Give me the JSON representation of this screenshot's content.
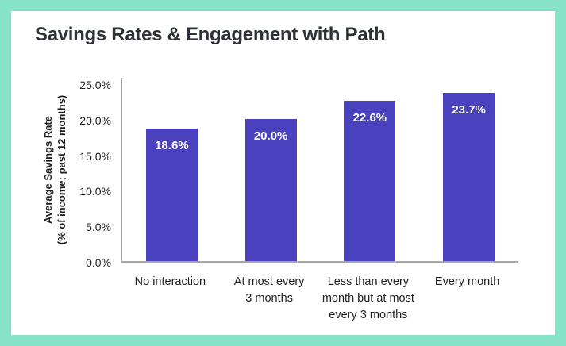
{
  "frame": {
    "border_color": "#86e3c6",
    "card_background": "#ffffff"
  },
  "title": "Savings Rates & Engagement with Path",
  "chart_data": {
    "type": "bar",
    "title": "Savings Rates & Engagement with Path",
    "categories": [
      "No interaction",
      "At most every 3 months",
      "Less than every month but at most every 3 months",
      "Every month"
    ],
    "category_lines": [
      [
        "No interaction"
      ],
      [
        "At most every",
        "3 months"
      ],
      [
        "Less than every",
        "month but at most",
        "every 3 months"
      ],
      [
        "Every month"
      ]
    ],
    "values": [
      18.6,
      20.0,
      22.6,
      23.7
    ],
    "value_labels": [
      "18.6%",
      "20.0%",
      "22.6%",
      "23.7%"
    ],
    "xlabel": "",
    "ylabel": "Average Savings Rate (% of income; past 12 months)",
    "ylabel_lines": [
      "Average Savings Rate",
      "(% of income; past 12 months)"
    ],
    "ylim": [
      0,
      25
    ],
    "ytick_step": 5,
    "ytick_labels": [
      "0.0%",
      "5.0%",
      "10.0%",
      "15.0%",
      "20.0%",
      "25.0%"
    ],
    "grid": false,
    "legend": null,
    "bar_color": "#4a41bf",
    "bar_label_color": "#ffffff",
    "axis_color": "#a6a6a6",
    "text_color": "#1c1e21"
  }
}
